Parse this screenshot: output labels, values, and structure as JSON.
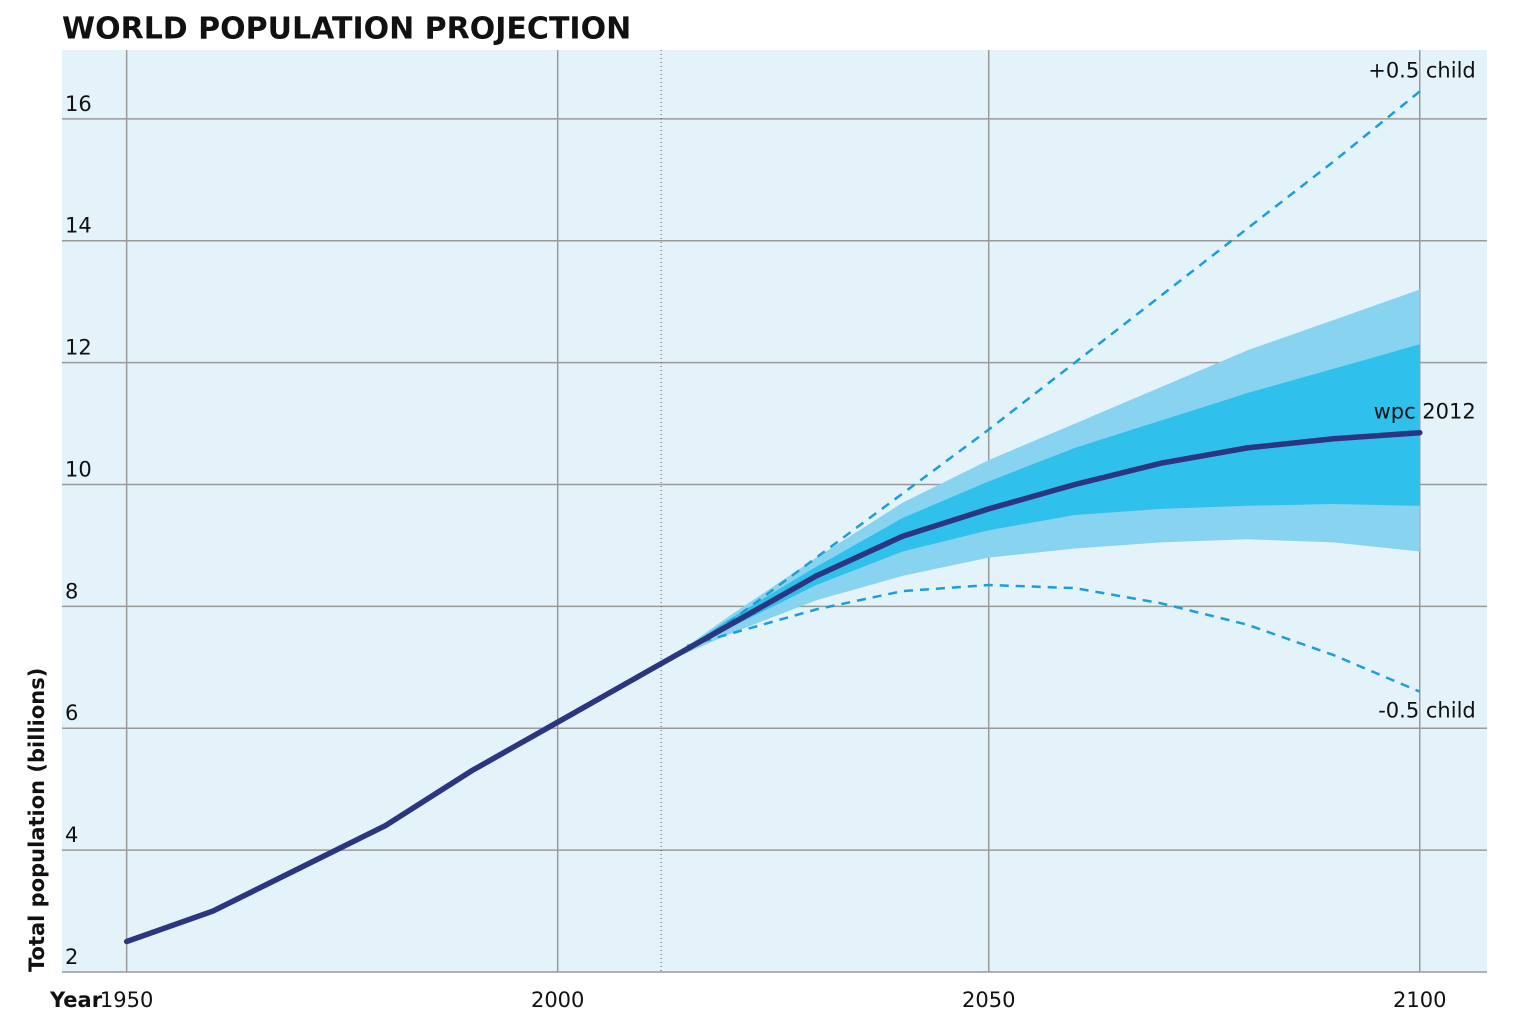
{
  "chart_data": {
    "type": "line",
    "title": "WORLD POPULATION PROJECTION",
    "x_label": "Year",
    "y_label": "Total population (billions)",
    "xlim": [
      1942.5,
      2107.8
    ],
    "ylim": [
      2,
      17.13
    ],
    "xticks": [
      1950,
      2000,
      2050,
      2100
    ],
    "yticks": [
      2,
      4,
      6,
      8,
      10,
      12,
      14,
      16
    ],
    "grid": true,
    "reference_x": 2012,
    "series": [
      {
        "kind": "band",
        "color": "#88d3f0",
        "x": [
          2012,
          2020,
          2030,
          2040,
          2050,
          2060,
          2070,
          2080,
          2090,
          2100
        ],
        "values": [
          7.05,
          7.85,
          8.8,
          9.7,
          10.4,
          11.0,
          11.6,
          12.2,
          12.7,
          13.2
        ],
        "lower": [
          7.05,
          7.55,
          8.1,
          8.5,
          8.8,
          8.95,
          9.05,
          9.1,
          9.05,
          8.9
        ]
      },
      {
        "kind": "band",
        "color": "#2fc0ec",
        "x": [
          2012,
          2020,
          2030,
          2040,
          2050,
          2060,
          2070,
          2080,
          2090,
          2100
        ],
        "values": [
          7.05,
          7.8,
          8.65,
          9.45,
          10.05,
          10.6,
          11.05,
          11.5,
          11.9,
          12.3
        ],
        "lower": [
          7.05,
          7.65,
          8.35,
          8.9,
          9.25,
          9.5,
          9.6,
          9.65,
          9.68,
          9.65
        ]
      },
      {
        "kind": "dashed",
        "name": "+0.5 child",
        "color": "#1a9fd8",
        "x": [
          2015,
          2020,
          2030,
          2040,
          2050,
          2060,
          2070,
          2080,
          2090,
          2100
        ],
        "values": [
          7.3,
          7.75,
          8.8,
          9.85,
          10.9,
          12.0,
          13.1,
          14.2,
          15.3,
          16.45
        ]
      },
      {
        "kind": "dashed",
        "name": "-0.5 child",
        "color": "#1a9fd8",
        "x": [
          2015,
          2020,
          2030,
          2040,
          2050,
          2060,
          2070,
          2080,
          2090,
          2100
        ],
        "values": [
          7.35,
          7.55,
          7.95,
          8.25,
          8.35,
          8.3,
          8.05,
          7.7,
          7.2,
          6.6
        ]
      },
      {
        "kind": "line",
        "name": "wpc 2012",
        "color": "#2b3580",
        "x": [
          1950,
          1960,
          1970,
          1980,
          1990,
          2000,
          2010,
          2020,
          2030,
          2040,
          2050,
          2060,
          2070,
          2080,
          2090,
          2100
        ],
        "values": [
          2.5,
          3.0,
          3.7,
          4.4,
          5.3,
          6.1,
          6.9,
          7.7,
          8.5,
          9.15,
          9.6,
          10.0,
          10.35,
          10.6,
          10.75,
          10.85
        ]
      }
    ]
  }
}
